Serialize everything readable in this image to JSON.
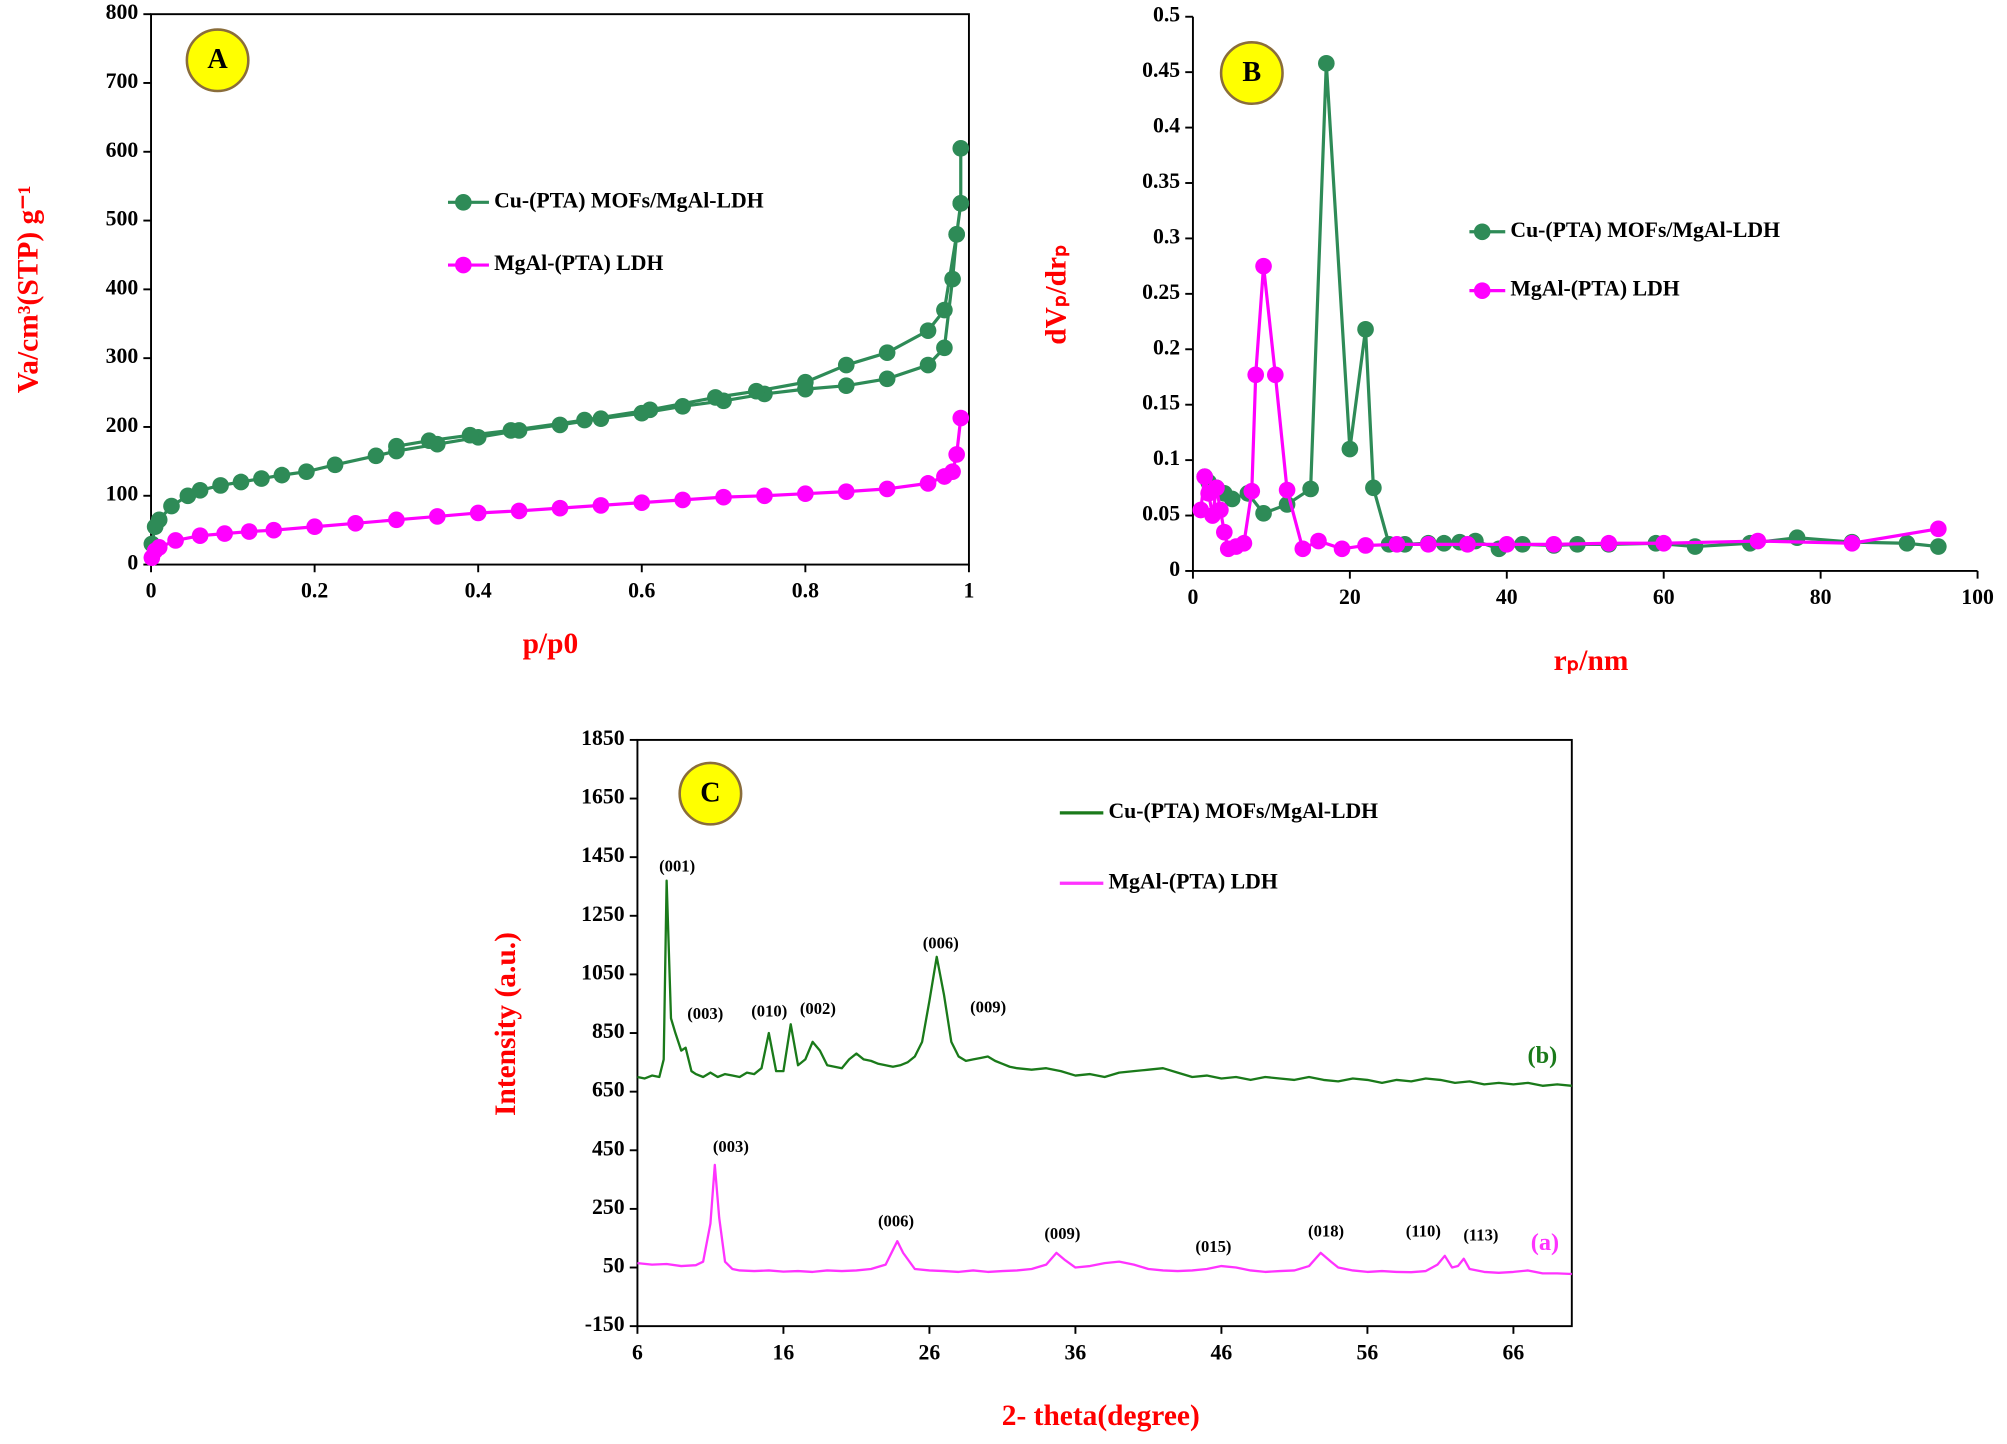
{
  "chart_data": [
    {
      "type": "line",
      "panel_label": "A",
      "x_label": "p/p0",
      "y_label": "Va/cm³(STP) g⁻¹",
      "xlim": [
        0,
        1
      ],
      "xticks": [
        0,
        0.2,
        0.4,
        0.6,
        0.8,
        1
      ],
      "ylim": [
        0,
        800
      ],
      "yticks": [
        0,
        100,
        200,
        300,
        400,
        500,
        600,
        700,
        800
      ],
      "series": [
        {
          "name": "Cu-(PTA) MOFs/MgAl-LDH",
          "color": "#2e8b57",
          "x": [
            0.001,
            0.005,
            0.01,
            0.025,
            0.045,
            0.06,
            0.085,
            0.11,
            0.135,
            0.16,
            0.19,
            0.225,
            0.275,
            0.3,
            0.35,
            0.4,
            0.45,
            0.5,
            0.55,
            0.6,
            0.65,
            0.7,
            0.75,
            0.8,
            0.85,
            0.9,
            0.95,
            0.97,
            0.98,
            0.985,
            0.99,
            0.99,
            0.99,
            0.985,
            0.97,
            0.95,
            0.9,
            0.85,
            0.8,
            0.74,
            0.69,
            0.61,
            0.53,
            0.44,
            0.39,
            0.34,
            0.3
          ],
          "values": [
            30,
            55,
            65,
            85,
            100,
            108,
            115,
            120,
            125,
            130,
            135,
            145,
            158,
            165,
            175,
            185,
            195,
            203,
            212,
            220,
            230,
            238,
            248,
            255,
            260,
            270,
            290,
            315,
            415,
            480,
            525,
            605,
            525,
            480,
            370,
            340,
            308,
            290,
            265,
            252,
            243,
            225,
            210,
            195,
            188,
            180,
            172
          ]
        },
        {
          "name": "MgAl-(PTA) LDH",
          "color": "#ff00ff",
          "x": [
            0.001,
            0.005,
            0.01,
            0.03,
            0.06,
            0.09,
            0.12,
            0.15,
            0.2,
            0.25,
            0.3,
            0.35,
            0.4,
            0.45,
            0.5,
            0.55,
            0.6,
            0.65,
            0.7,
            0.75,
            0.8,
            0.85,
            0.9,
            0.95,
            0.97,
            0.98,
            0.985,
            0.99
          ],
          "values": [
            10,
            20,
            25,
            35,
            42,
            45,
            48,
            50,
            55,
            60,
            65,
            70,
            75,
            78,
            82,
            86,
            90,
            94,
            98,
            100,
            103,
            106,
            110,
            118,
            128,
            135,
            160,
            213
          ]
        }
      ]
    },
    {
      "type": "line",
      "panel_label": "B",
      "x_label": "rₚ/nm",
      "y_label": "dVₚ/drₚ",
      "xlim": [
        0,
        100
      ],
      "xticks": [
        0,
        20,
        40,
        60,
        80,
        100
      ],
      "ylim": [
        0,
        0.5
      ],
      "yticks": [
        0,
        0.05,
        0.1,
        0.15,
        0.2,
        0.25,
        0.3,
        0.35,
        0.4,
        0.45,
        0.5
      ],
      "series": [
        {
          "name": "Cu-(PTA) MOFs/MgAl-LDH",
          "color": "#2e8b57",
          "x": [
            1.5,
            2,
            3,
            4,
            5,
            7,
            9,
            12,
            15,
            17,
            20,
            22,
            23,
            25,
            27,
            30,
            32,
            34,
            36,
            39,
            42,
            46,
            49,
            53,
            59,
            64,
            71,
            77,
            84,
            91,
            95
          ],
          "values": [
            0.085,
            0.08,
            0.075,
            0.07,
            0.065,
            0.07,
            0.052,
            0.06,
            0.074,
            0.458,
            0.11,
            0.218,
            0.075,
            0.024,
            0.024,
            0.025,
            0.025,
            0.026,
            0.027,
            0.02,
            0.024,
            0.023,
            0.024,
            0.024,
            0.025,
            0.022,
            0.025,
            0.03,
            0.026,
            0.025,
            0.022
          ]
        },
        {
          "name": "MgAl-(PTA) LDH",
          "color": "#ff00ff",
          "x": [
            1,
            1.5,
            2,
            2.5,
            3,
            3.5,
            4,
            4.5,
            5.5,
            6.5,
            7.5,
            8,
            9,
            10.5,
            12,
            14,
            16,
            19,
            22,
            26,
            30,
            35,
            40,
            46,
            53,
            60,
            72,
            84,
            95
          ],
          "values": [
            0.055,
            0.085,
            0.07,
            0.05,
            0.075,
            0.055,
            0.035,
            0.02,
            0.022,
            0.025,
            0.072,
            0.177,
            0.275,
            0.177,
            0.073,
            0.02,
            0.027,
            0.02,
            0.023,
            0.024,
            0.024,
            0.024,
            0.024,
            0.024,
            0.025,
            0.025,
            0.027,
            0.025,
            0.038
          ]
        }
      ]
    },
    {
      "type": "line",
      "panel_label": "C",
      "x_label": "2- theta(degree)",
      "y_label": "Intensity (a.u.)",
      "xlim": [
        6,
        70
      ],
      "xticks": [
        6,
        16,
        26,
        36,
        46,
        56,
        66
      ],
      "ylim": [
        -150,
        1850
      ],
      "yticks": [
        -150,
        50,
        250,
        450,
        650,
        850,
        1050,
        1250,
        1450,
        1650,
        1850
      ],
      "annotations": [
        "(001)",
        "(003)",
        "(010)",
        "(002)",
        "(006)",
        "(009)",
        "(b)",
        "(003)",
        "(006)",
        "(009)",
        "(015)",
        "(018)",
        "(110)",
        "(113)",
        "(a)"
      ],
      "series": [
        {
          "name": "Cu-(PTA) MOFs/MgAl-LDH",
          "color": "#1a7a1a",
          "x": [
            6,
            6.5,
            7,
            7.5,
            7.8,
            8.0,
            8.3,
            8.6,
            9,
            9.3,
            9.7,
            10,
            10.5,
            11,
            11.5,
            12,
            12.5,
            13,
            13.5,
            14,
            14.5,
            15,
            15.5,
            16,
            16.5,
            17,
            17.5,
            18,
            18.5,
            19,
            19.5,
            20,
            20.5,
            21,
            21.5,
            22,
            22.5,
            23,
            23.5,
            24,
            24.5,
            25,
            25.5,
            26,
            26.5,
            27,
            27.5,
            28,
            28.5,
            29,
            29.5,
            30,
            30.5,
            31,
            31.5,
            32,
            33,
            34,
            35,
            36,
            37,
            38,
            39,
            40,
            41,
            42,
            43,
            44,
            45,
            46,
            47,
            48,
            49,
            50,
            51,
            52,
            53,
            54,
            55,
            56,
            57,
            58,
            59,
            60,
            61,
            62,
            63,
            64,
            65,
            66,
            67,
            68,
            69,
            70
          ],
          "values": [
            700,
            695,
            705,
            700,
            760,
            1370,
            900,
            850,
            790,
            800,
            720,
            710,
            700,
            715,
            700,
            710,
            705,
            700,
            715,
            710,
            730,
            850,
            720,
            720,
            880,
            740,
            760,
            820,
            790,
            740,
            735,
            730,
            760,
            780,
            760,
            755,
            745,
            740,
            735,
            740,
            750,
            770,
            820,
            960,
            1110,
            980,
            820,
            770,
            755,
            760,
            765,
            770,
            755,
            745,
            735,
            730,
            725,
            730,
            720,
            705,
            710,
            700,
            715,
            720,
            725,
            730,
            715,
            700,
            705,
            695,
            700,
            690,
            700,
            695,
            690,
            700,
            690,
            685,
            695,
            690,
            680,
            690,
            685,
            695,
            690,
            680,
            685,
            675,
            680,
            675,
            680,
            670,
            675,
            670
          ]
        },
        {
          "name": "MgAl-(PTA) LDH",
          "color": "#ff33ff",
          "x": [
            6,
            7,
            8,
            9,
            10,
            10.5,
            11,
            11.3,
            11.6,
            12,
            12.5,
            13,
            14,
            15,
            16,
            17,
            18,
            19,
            20,
            21,
            22,
            23,
            23.5,
            23.8,
            24.2,
            25,
            26,
            27,
            28,
            29,
            30,
            31,
            32,
            33,
            34,
            34.7,
            35.3,
            36,
            37,
            38,
            39,
            40,
            41,
            42,
            43,
            44,
            45,
            46,
            47,
            48,
            49,
            50,
            51,
            52,
            52.8,
            53.5,
            54,
            55,
            56,
            57,
            58,
            59,
            60,
            60.8,
            61.3,
            61.8,
            62.2,
            62.6,
            63,
            64,
            65,
            66,
            67,
            68,
            69,
            70
          ],
          "values": [
            65,
            60,
            62,
            55,
            58,
            70,
            200,
            400,
            220,
            70,
            45,
            40,
            38,
            40,
            36,
            38,
            35,
            40,
            38,
            40,
            45,
            60,
            110,
            140,
            100,
            45,
            40,
            38,
            35,
            40,
            35,
            38,
            40,
            45,
            60,
            100,
            75,
            50,
            55,
            65,
            70,
            60,
            45,
            40,
            38,
            40,
            45,
            55,
            50,
            40,
            35,
            38,
            40,
            55,
            100,
            70,
            50,
            40,
            35,
            38,
            35,
            34,
            38,
            60,
            90,
            50,
            55,
            80,
            45,
            35,
            32,
            35,
            40,
            30,
            30,
            28
          ]
        }
      ]
    }
  ]
}
